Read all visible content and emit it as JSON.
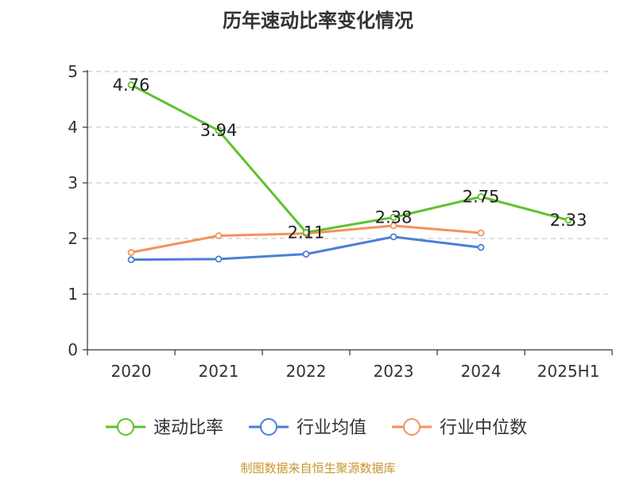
{
  "chart_data": {
    "type": "line",
    "title": "历年速动比率变化情况",
    "categories": [
      "2020",
      "2021",
      "2022",
      "2023",
      "2024",
      "2025H1"
    ],
    "ylim": [
      0,
      5
    ],
    "yticks": [
      "0",
      "1",
      "2",
      "3",
      "4",
      "5"
    ],
    "grid": true,
    "legend_position": "bottom",
    "series": [
      {
        "name": "速动比率",
        "color": "#5ec22d",
        "values": [
          4.76,
          3.94,
          2.11,
          2.38,
          2.75,
          2.33
        ],
        "data_labels": [
          "4.76",
          "3.94",
          "2.11",
          "2.38",
          "2.75",
          "2.33"
        ]
      },
      {
        "name": "行业均值",
        "color": "#4a7fd6",
        "values": [
          1.62,
          1.63,
          1.72,
          2.03,
          1.84,
          null
        ]
      },
      {
        "name": "行业中位数",
        "color": "#f4925c",
        "values": [
          1.75,
          2.05,
          2.09,
          2.23,
          2.1,
          null
        ]
      }
    ]
  },
  "source_note": "制图数据来自恒生聚源数据库"
}
